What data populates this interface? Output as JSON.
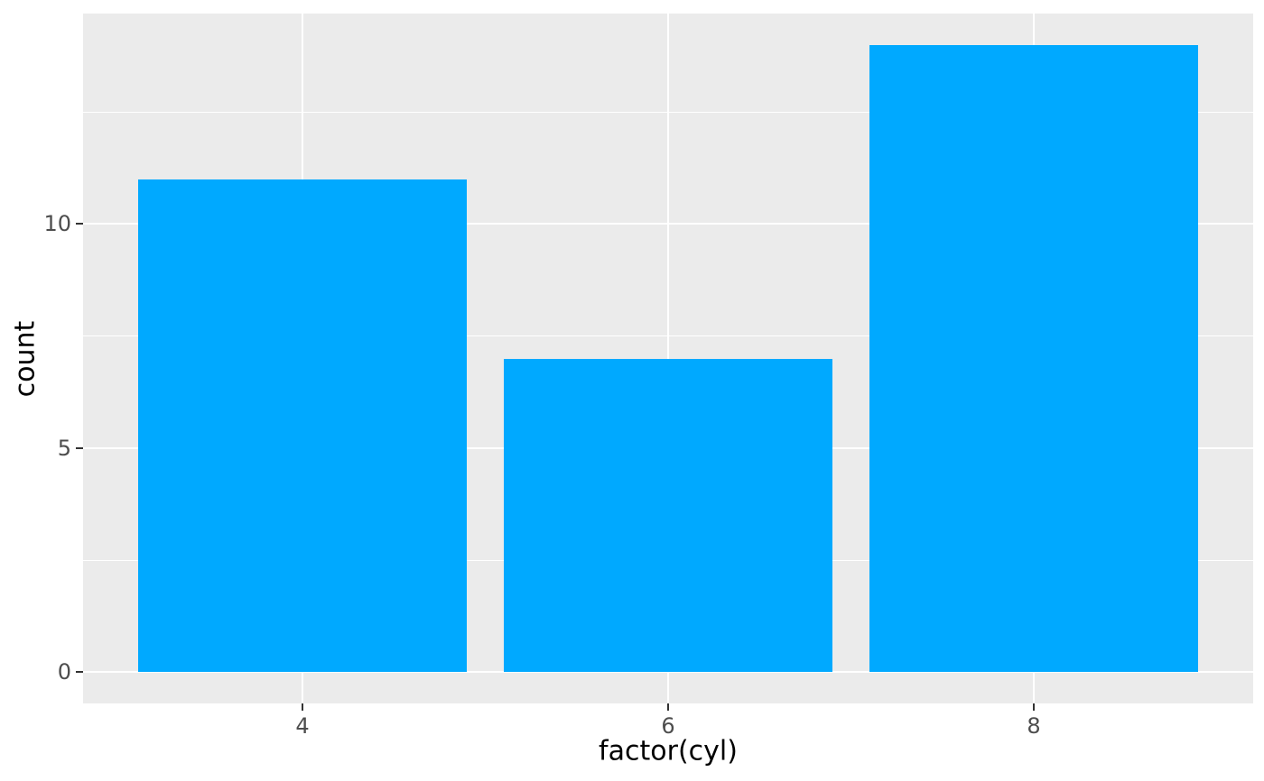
{
  "figure": {
    "background": "#FFFFFF",
    "panel_background": "#EBEBEB",
    "grid_major_color": "#FFFFFF",
    "grid_minor_color": "#FFFFFF",
    "bar_fill": "#00A9FF",
    "tick_mark_color": "#333333",
    "tick_label_color": "#4D4D4D",
    "axis_title_color": "#000000"
  },
  "chart_data": {
    "type": "bar",
    "style": "ggplot2",
    "title": "",
    "categories": [
      "4",
      "6",
      "8"
    ],
    "values": [
      11,
      7,
      14
    ],
    "xlabel": "factor(cyl)",
    "ylabel": "count",
    "ylim": [
      -0.7,
      14.7
    ],
    "yticks_major": [
      0,
      5,
      10
    ],
    "yticks_minor": [
      2.5,
      7.5,
      12.5
    ],
    "ytick_labels": [
      "0",
      "5",
      "10"
    ],
    "bar_width_fraction": 0.9,
    "grid": true,
    "legend": "none"
  }
}
